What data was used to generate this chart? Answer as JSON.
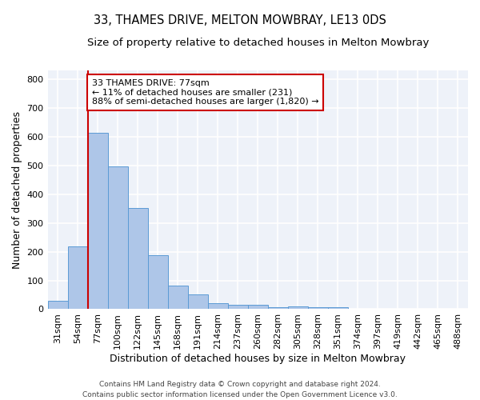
{
  "title": "33, THAMES DRIVE, MELTON MOWBRAY, LE13 0DS",
  "subtitle": "Size of property relative to detached houses in Melton Mowbray",
  "xlabel": "Distribution of detached houses by size in Melton Mowbray",
  "ylabel": "Number of detached properties",
  "bar_labels": [
    "31sqm",
    "54sqm",
    "77sqm",
    "100sqm",
    "122sqm",
    "145sqm",
    "168sqm",
    "191sqm",
    "214sqm",
    "237sqm",
    "260sqm",
    "282sqm",
    "305sqm",
    "328sqm",
    "351sqm",
    "374sqm",
    "397sqm",
    "419sqm",
    "442sqm",
    "465sqm",
    "488sqm"
  ],
  "bar_values": [
    30,
    218,
    612,
    497,
    353,
    188,
    83,
    52,
    22,
    16,
    16,
    7,
    10,
    8,
    7,
    0,
    0,
    0,
    0,
    0,
    0
  ],
  "bar_color": "#aec6e8",
  "bar_edge_color": "#5b9bd5",
  "vline_index": 2,
  "vline_color": "#cc0000",
  "annotation_line1": "33 THAMES DRIVE: 77sqm",
  "annotation_line2": "← 11% of detached houses are smaller (231)",
  "annotation_line3": "88% of semi-detached houses are larger (1,820) →",
  "annotation_box_color": "#ffffff",
  "annotation_box_edge": "#cc0000",
  "ylim": [
    0,
    830
  ],
  "yticks": [
    0,
    100,
    200,
    300,
    400,
    500,
    600,
    700,
    800
  ],
  "plot_bg_color": "#eef2f9",
  "fig_bg_color": "#ffffff",
  "grid_color": "#ffffff",
  "footer": "Contains HM Land Registry data © Crown copyright and database right 2024.\nContains public sector information licensed under the Open Government Licence v3.0.",
  "title_fontsize": 10.5,
  "subtitle_fontsize": 9.5,
  "xlabel_fontsize": 9,
  "ylabel_fontsize": 9,
  "tick_fontsize": 8,
  "annotation_fontsize": 8,
  "footer_fontsize": 6.5
}
